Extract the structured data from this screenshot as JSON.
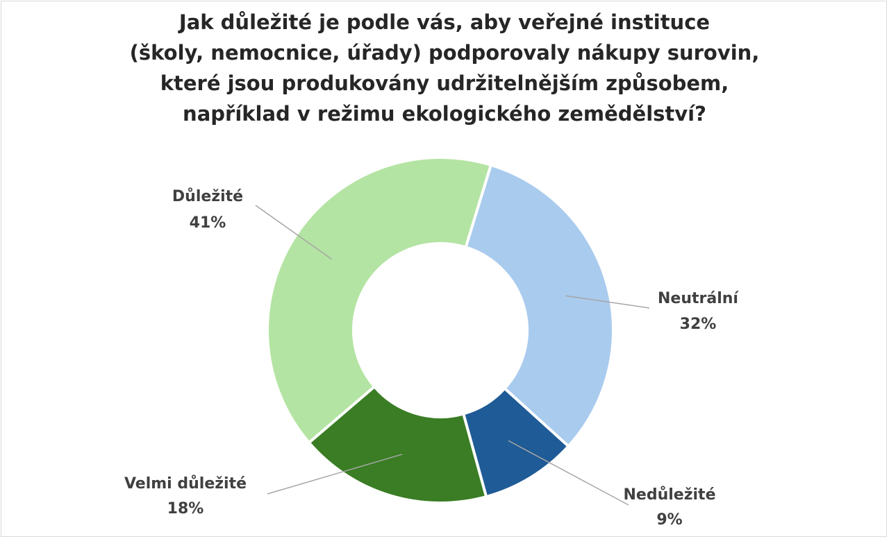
{
  "chart_data": {
    "type": "pie",
    "donut": true,
    "title_lines": [
      "Jak důležité je podle vás, aby veřejné instituce",
      "(školy, nemocnice, úřady) podporovaly nákupy surovin,",
      "které jsou produkovány udržitelnějším způsobem,",
      "například v režimu ekologického zemědělství?"
    ],
    "categories": [
      "Neutrální",
      "Nedůležité",
      "Velmi důležité",
      "Důležité"
    ],
    "values": [
      32,
      9,
      18,
      41
    ],
    "value_labels": [
      "32%",
      "9%",
      "18%",
      "41%"
    ],
    "colors": [
      "#a9cbee",
      "#1f5b96",
      "#3a7d24",
      "#b4e4a3"
    ]
  }
}
